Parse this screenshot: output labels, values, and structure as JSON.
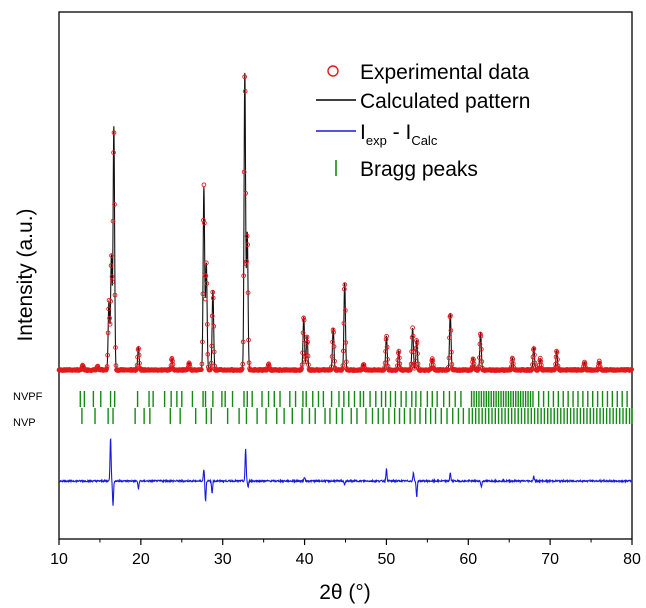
{
  "chart_data": {
    "type": "line",
    "xlabel": "2θ (°)",
    "ylabel": "Intensity (a.u.)",
    "xlim": [
      10,
      80
    ],
    "x_ticks": [
      "10",
      "20",
      "30",
      "40",
      "50",
      "60",
      "70",
      "80"
    ],
    "y_ticks": "none",
    "grid": false,
    "legend_position": "top-right",
    "colors": {
      "experimental": "#e3191c",
      "calculated": "#000000",
      "difference": "#1a1adc",
      "bragg": "#138a13"
    },
    "legend": {
      "experimental": "Experimental data",
      "calculated": "Calculated pattern",
      "difference_main": "I",
      "difference_sub1": "exp",
      "difference_mid": " - I",
      "difference_sub2": "Calc",
      "bragg": "Bragg peaks"
    },
    "peaks": [
      {
        "x": 12.9,
        "h": 0.012
      },
      {
        "x": 14.7,
        "h": 0.01
      },
      {
        "x": 16.1,
        "h": 0.18
      },
      {
        "x": 16.4,
        "h": 0.3
      },
      {
        "x": 16.7,
        "h": 0.64
      },
      {
        "x": 19.7,
        "h": 0.06
      },
      {
        "x": 23.8,
        "h": 0.032
      },
      {
        "x": 25.9,
        "h": 0.02
      },
      {
        "x": 27.7,
        "h": 0.48
      },
      {
        "x": 28.0,
        "h": 0.28
      },
      {
        "x": 28.8,
        "h": 0.21
      },
      {
        "x": 32.7,
        "h": 0.78
      },
      {
        "x": 33.0,
        "h": 0.36
      },
      {
        "x": 35.6,
        "h": 0.015
      },
      {
        "x": 39.9,
        "h": 0.14
      },
      {
        "x": 40.3,
        "h": 0.09
      },
      {
        "x": 43.5,
        "h": 0.11
      },
      {
        "x": 44.9,
        "h": 0.23
      },
      {
        "x": 47.2,
        "h": 0.015
      },
      {
        "x": 50.0,
        "h": 0.09
      },
      {
        "x": 51.5,
        "h": 0.05
      },
      {
        "x": 53.2,
        "h": 0.11
      },
      {
        "x": 53.7,
        "h": 0.08
      },
      {
        "x": 55.6,
        "h": 0.03
      },
      {
        "x": 57.8,
        "h": 0.15
      },
      {
        "x": 60.6,
        "h": 0.03
      },
      {
        "x": 61.5,
        "h": 0.1
      },
      {
        "x": 65.4,
        "h": 0.03
      },
      {
        "x": 68.0,
        "h": 0.06
      },
      {
        "x": 68.8,
        "h": 0.03
      },
      {
        "x": 70.8,
        "h": 0.05
      },
      {
        "x": 74.2,
        "h": 0.02
      },
      {
        "x": 76.0,
        "h": 0.022
      }
    ],
    "difference_features": [
      {
        "x": 16.3,
        "a": 0.11
      },
      {
        "x": 16.6,
        "a": -0.06
      },
      {
        "x": 19.7,
        "a": -0.02
      },
      {
        "x": 27.7,
        "a": 0.03
      },
      {
        "x": 27.9,
        "a": -0.05
      },
      {
        "x": 28.7,
        "a": -0.03
      },
      {
        "x": 32.8,
        "a": 0.08
      },
      {
        "x": 33.1,
        "a": -0.015
      },
      {
        "x": 40.0,
        "a": 0.01
      },
      {
        "x": 44.9,
        "a": -0.01
      },
      {
        "x": 50.0,
        "a": 0.03
      },
      {
        "x": 53.3,
        "a": 0.02
      },
      {
        "x": 53.7,
        "a": -0.04
      },
      {
        "x": 57.8,
        "a": 0.02
      },
      {
        "x": 61.6,
        "a": -0.015
      },
      {
        "x": 68.0,
        "a": 0.012
      }
    ],
    "phases": [
      {
        "name": "NVPF",
        "reflections": [
          12.6,
          13.1,
          14.2,
          15.1,
          16.3,
          16.8,
          19.6,
          21.0,
          21.5,
          22.9,
          23.7,
          24.4,
          25.0,
          26.3,
          27.6,
          27.9,
          28.8,
          29.9,
          30.3,
          31.2,
          32.6,
          33.0,
          33.6,
          34.8,
          35.6,
          36.3,
          37.0,
          38.2,
          38.9,
          39.8,
          40.2,
          41.0,
          41.7,
          42.3,
          43.3,
          44.2,
          44.8,
          45.4,
          46.1,
          46.8,
          47.2,
          48.0,
          48.7,
          49.4,
          49.9,
          50.5,
          51.1,
          51.8,
          52.4,
          53.1,
          53.6,
          54.2,
          55.0,
          55.6,
          56.2,
          57.0,
          57.7,
          58.4,
          59.1,
          60.4,
          60.7,
          61.0,
          61.3,
          61.6,
          61.9,
          62.2,
          62.5,
          62.8,
          63.1,
          63.4,
          63.7,
          64.0,
          64.3,
          64.6,
          64.9,
          65.2,
          65.5,
          65.8,
          66.1,
          66.4,
          66.7,
          67.0,
          67.3,
          67.6,
          67.9,
          68.6,
          69.2,
          69.8,
          70.4,
          71.0,
          71.6,
          72.2,
          72.8,
          73.4,
          74.0,
          74.6,
          75.2,
          75.8,
          76.4,
          77.0,
          77.6,
          78.2,
          78.8,
          79.4
        ]
      },
      {
        "name": "NVP",
        "reflections": [
          12.8,
          14.4,
          16.0,
          16.6,
          19.3,
          20.4,
          21.1,
          23.6,
          24.8,
          26.7,
          28.0,
          28.6,
          30.6,
          32.0,
          32.9,
          34.2,
          35.3,
          36.6,
          37.5,
          38.5,
          39.7,
          40.6,
          41.3,
          42.5,
          43.1,
          43.9,
          44.6,
          45.7,
          46.4,
          47.5,
          48.3,
          49.0,
          49.6,
          50.3,
          51.0,
          51.6,
          52.2,
          52.9,
          53.5,
          54.1,
          54.8,
          55.4,
          56.0,
          56.7,
          57.4,
          58.1,
          58.8,
          59.4,
          60.1,
          60.5,
          60.9,
          61.3,
          61.7,
          62.1,
          62.5,
          62.9,
          63.3,
          63.7,
          64.1,
          64.5,
          64.9,
          65.3,
          65.7,
          66.1,
          66.5,
          66.9,
          67.3,
          67.7,
          68.1,
          68.5,
          68.9,
          69.3,
          69.7,
          70.1,
          70.5,
          70.9,
          71.3,
          71.7,
          72.1,
          72.5,
          72.9,
          73.3,
          73.7,
          74.1,
          74.5,
          74.9,
          75.3,
          75.7,
          76.1,
          76.5,
          76.9,
          77.3,
          77.7,
          78.1,
          78.5,
          78.9,
          79.3,
          79.7,
          80.0
        ]
      }
    ]
  }
}
